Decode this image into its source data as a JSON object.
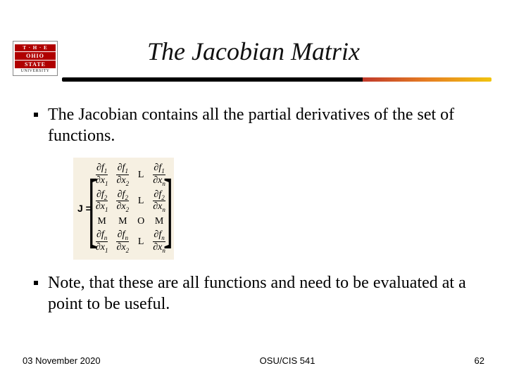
{
  "logo": {
    "line1": "T · H · E",
    "line2": "OHIO",
    "line3": "STATE",
    "sub": "UNIVERSITY"
  },
  "title": "The Jacobian Matrix",
  "bullets": {
    "b1": "The Jacobian contains all the partial derivatives of the set of functions.",
    "b2": "Note, that these are all functions and need to be evaluated at a point to be useful."
  },
  "matrix": {
    "prefix": "J =",
    "rows": [
      [
        "∂f1/∂x1",
        "∂f1/∂x2",
        "L",
        "∂f1/∂xn"
      ],
      [
        "∂f2/∂x1",
        "∂f2/∂x2",
        "L",
        "∂f2/∂xn"
      ],
      [
        "M",
        "M",
        "O",
        "M"
      ],
      [
        "∂fn/∂x1",
        "∂fn/∂x2",
        "L",
        "∂fn/∂xn"
      ]
    ],
    "background_color": "#f6f0e2"
  },
  "footer": {
    "date": "03 November 2020",
    "course": "OSU/CIS 541",
    "page": "62"
  }
}
